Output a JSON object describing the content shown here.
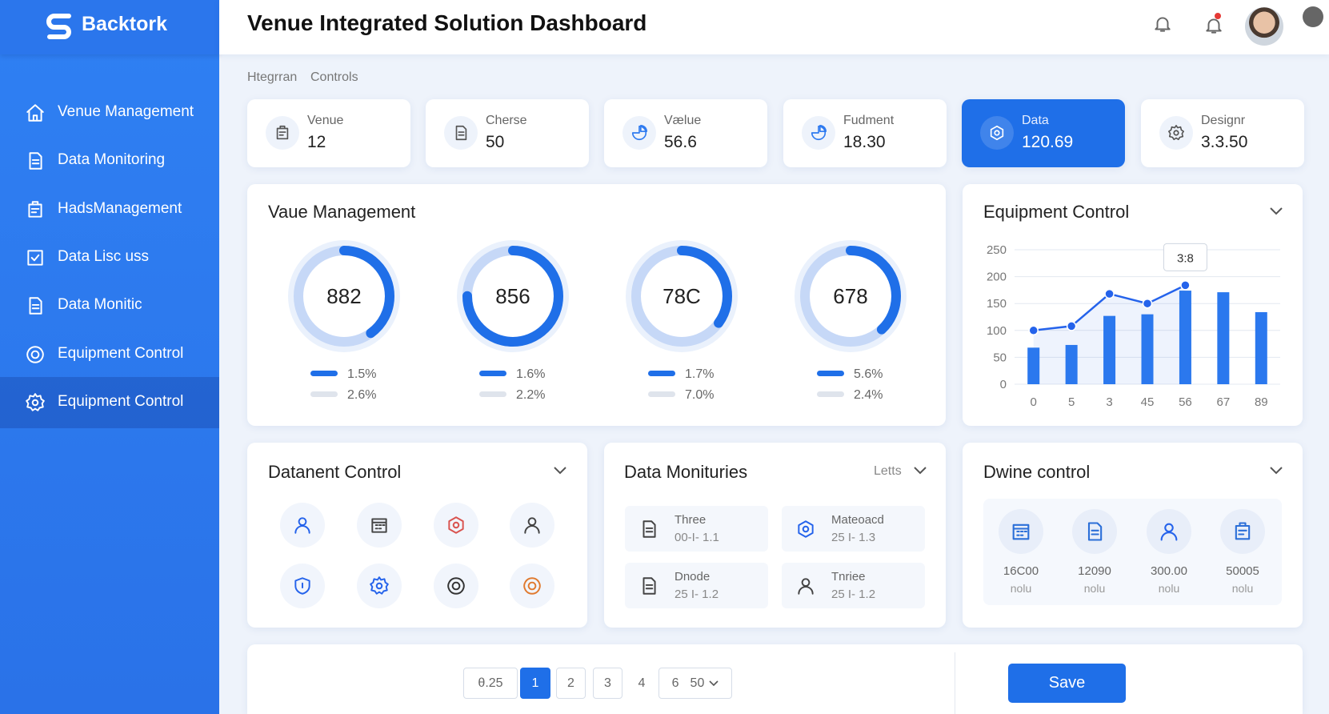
{
  "sidebar": {
    "brand": "Backtork",
    "nav": [
      {
        "label": "Venue Management",
        "icon": "home",
        "active": false
      },
      {
        "label": "Data Monitoring",
        "icon": "doc",
        "active": false
      },
      {
        "label": "HadsManagement",
        "icon": "box",
        "active": false
      },
      {
        "label": "Data Lisc uss",
        "icon": "check",
        "active": false
      },
      {
        "label": "Data Monitic",
        "icon": "doc",
        "active": false
      },
      {
        "label": "Equipment Control",
        "icon": "target",
        "active": false
      },
      {
        "label": "Equipment Control",
        "icon": "gear",
        "active": true
      }
    ]
  },
  "header": {
    "title": "Venue Integrated Solution Dashboard"
  },
  "breadcrumb": [
    "Htegrran",
    "Controls"
  ],
  "stats": [
    {
      "label": "Venue",
      "value": "12",
      "icon": "box",
      "active": false
    },
    {
      "label": "Cherse",
      "value": "50",
      "icon": "doc",
      "active": false
    },
    {
      "label": "Vælue",
      "value": "56.6",
      "icon": "pie",
      "active": false
    },
    {
      "label": "Fudment",
      "value": "18.30",
      "icon": "pie",
      "active": false
    },
    {
      "label": "Data",
      "value": "120.69",
      "icon": "hex",
      "active": true
    },
    {
      "label": "Designr",
      "value": "3.3.50",
      "icon": "gear",
      "active": false
    }
  ],
  "venue_panel": {
    "title": "Vaue Management",
    "donuts": [
      {
        "label": "882",
        "progress": 40,
        "legend": [
          "1.5%",
          "2.6%"
        ]
      },
      {
        "label": "856",
        "progress": 75,
        "legend": [
          "1.6%",
          "2.2%"
        ]
      },
      {
        "label": "78C",
        "progress": 35,
        "legend": [
          "1.7%",
          "7.0%"
        ]
      },
      {
        "label": "678",
        "progress": 38,
        "legend": [
          "5.6%",
          "2.4%"
        ]
      }
    ]
  },
  "equipment_chart": {
    "type": "bar",
    "title": "Equipment Control",
    "categories": [
      "0",
      "5",
      "3",
      "45",
      "56",
      "67",
      "89"
    ],
    "bars": {
      "color": "#2b78ee",
      "values": [
        68,
        73,
        127,
        130,
        174,
        171,
        134
      ]
    },
    "line": {
      "color": "#2563eb",
      "values": [
        100,
        108,
        168,
        150,
        184,
        null,
        null
      ]
    },
    "tooltip": "3:8",
    "ylim": [
      0,
      250
    ],
    "yticks": [
      0,
      50,
      100,
      150,
      200,
      250
    ],
    "grid": true
  },
  "datanent_panel": {
    "title": "Datanent Control"
  },
  "monitor_panel": {
    "title": "Data Monituries",
    "filter": "Letts",
    "items": [
      {
        "name": "Three",
        "value": "00-I- 1.1",
        "icon": "doc"
      },
      {
        "name": "Mateoacd",
        "value": "25 I- 1.3",
        "icon": "hex"
      },
      {
        "name": "Dnode",
        "value": "25 I- 1.2",
        "icon": "doc"
      },
      {
        "name": "Tnriee",
        "value": "25 I- 1.2",
        "icon": "user"
      }
    ]
  },
  "dwine_panel": {
    "title": "Dwine control",
    "items": [
      {
        "value": "16C00",
        "unit": "nolu",
        "icon": "cal"
      },
      {
        "value": "12090",
        "unit": "nolu",
        "icon": "doc"
      },
      {
        "value": "300.00",
        "unit": "nolu",
        "icon": "user"
      },
      {
        "value": "50005",
        "unit": "nolu",
        "icon": "box"
      }
    ]
  },
  "pagination": {
    "range": "θ.25",
    "pages": [
      {
        "label": "1",
        "active": true
      },
      {
        "label": "2",
        "active": false
      },
      {
        "label": "3",
        "active": false
      },
      {
        "label": "4",
        "active": false
      }
    ],
    "size_prefix": "6",
    "size": "50"
  },
  "save": "Save"
}
